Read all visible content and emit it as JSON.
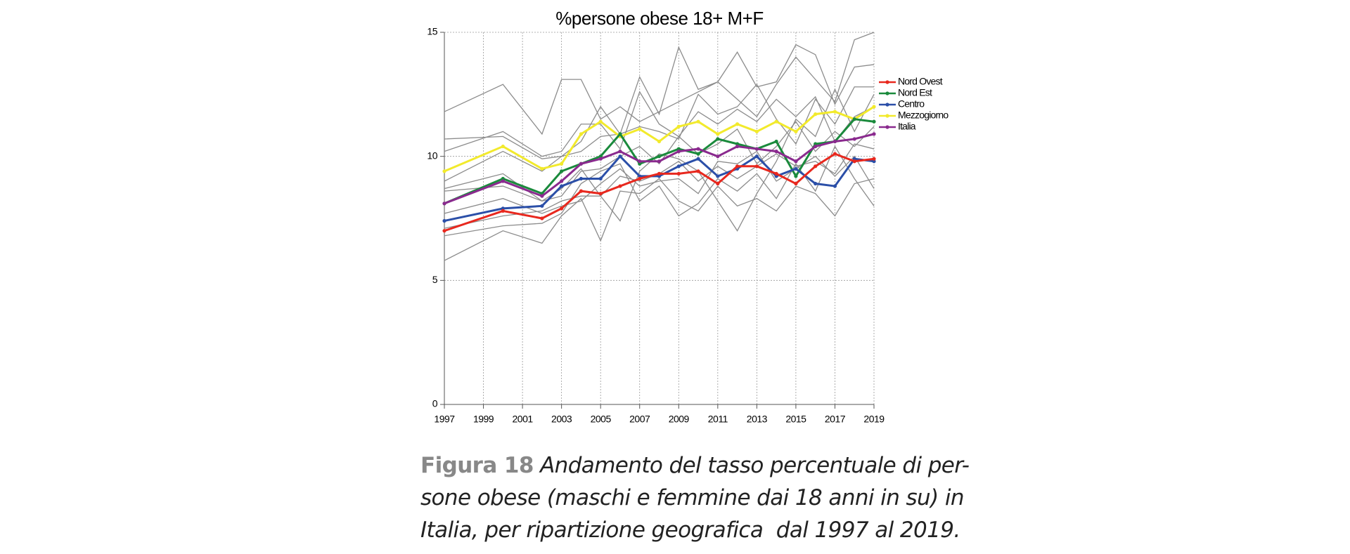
{
  "chart_data": {
    "type": "line",
    "title": "%persone obese 18+ M+F",
    "x": [
      1997,
      2000,
      2002,
      2003,
      2004,
      2005,
      2006,
      2007,
      2008,
      2009,
      2010,
      2011,
      2012,
      2013,
      2014,
      2015,
      2016,
      2017,
      2018,
      2019
    ],
    "xlim": [
      1997,
      2019
    ],
    "xticks": [
      1997,
      1999,
      2001,
      2003,
      2005,
      2007,
      2009,
      2011,
      2013,
      2015,
      2017,
      2019
    ],
    "ylim": [
      0,
      15
    ],
    "yticks": [
      0,
      5,
      10,
      15
    ],
    "grid": true,
    "legend": "right",
    "series": [
      {
        "color": "#8c8c8c",
        "values": [
          11.8,
          12.9,
          10.9,
          13.1,
          13.1,
          11.5,
          12.0,
          11.4,
          11.8,
          12.2,
          12.6,
          13.0,
          12.3,
          11.6,
          12.9,
          14.0,
          13.1,
          12.2,
          14.7,
          15.0
        ]
      },
      {
        "color": "#8c8c8c",
        "values": [
          5.8,
          7.0,
          6.5,
          7.6,
          8.3,
          6.6,
          8.6,
          8.5,
          9.1,
          8.2,
          7.8,
          8.8,
          8.0,
          8.3,
          7.8,
          8.8,
          8.5,
          7.6,
          8.9,
          9.1
        ]
      },
      {
        "color": "#8c8c8c",
        "values": [
          10.7,
          10.8,
          9.9,
          10.0,
          10.6,
          12.0,
          10.9,
          13.2,
          11.7,
          14.4,
          12.7,
          13.0,
          14.2,
          12.8,
          13.0,
          14.5,
          14.1,
          12.1,
          13.6,
          13.7
        ]
      },
      {
        "color": "#8c8c8c",
        "values": [
          8.7,
          9.3,
          8.2,
          8.7,
          9.5,
          8.4,
          7.4,
          9.4,
          10.1,
          9.9,
          9.4,
          8.2,
          7.0,
          8.5,
          9.8,
          11.5,
          10.8,
          12.7,
          11.0,
          12.5
        ]
      },
      {
        "color": "#8c8c8c",
        "values": [
          6.8,
          7.2,
          7.3,
          7.7,
          8.9,
          9.4,
          9.7,
          8.2,
          8.8,
          7.6,
          8.1,
          9.1,
          8.6,
          9.3,
          8.3,
          9.7,
          8.6,
          10.4,
          9.1,
          8.0
        ]
      },
      {
        "color": "#8c8c8c",
        "values": [
          9.0,
          10.2,
          9.4,
          10.0,
          10.2,
          10.8,
          10.9,
          11.2,
          11.0,
          10.7,
          12.5,
          11.7,
          12.0,
          12.9,
          11.5,
          10.5,
          12.3,
          11.3,
          12.8,
          12.8
        ]
      },
      {
        "color": "#8c8c8c",
        "values": [
          8.6,
          8.8,
          8.2,
          8.4,
          9.4,
          9.5,
          10.0,
          10.4,
          9.7,
          10.8,
          10.1,
          10.5,
          11.1,
          9.7,
          10.4,
          11.4,
          10.2,
          11.0,
          10.4,
          11.2
        ]
      },
      {
        "color": "#8c8c8c",
        "values": [
          7.7,
          8.3,
          7.7,
          8.0,
          8.2,
          8.9,
          9.5,
          8.8,
          9.0,
          9.1,
          8.5,
          9.8,
          9.7,
          10.2,
          9.0,
          9.5,
          10.0,
          9.2,
          10.0,
          8.7
        ]
      },
      {
        "color": "#8c8c8c",
        "values": [
          10.2,
          11.0,
          10.0,
          10.2,
          11.3,
          11.3,
          10.3,
          12.6,
          11.3,
          10.8,
          11.8,
          11.3,
          11.9,
          11.4,
          12.3,
          11.6,
          12.4,
          10.6,
          11.6,
          12.0
        ]
      },
      {
        "color": "#8c8c8c",
        "values": [
          7.1,
          7.6,
          7.8,
          8.2,
          8.4,
          8.4,
          9.2,
          9.0,
          9.3,
          9.8,
          9.0,
          9.6,
          9.1,
          9.6,
          10.1,
          9.6,
          9.8,
          9.3,
          10.5,
          10.3
        ]
      },
      {
        "name": "Mezzogiorno",
        "color": "#f2ea2c",
        "values": [
          9.4,
          10.4,
          9.5,
          9.7,
          10.9,
          11.4,
          10.8,
          11.1,
          10.6,
          11.2,
          11.4,
          10.9,
          11.3,
          11.0,
          11.4,
          11.0,
          11.7,
          11.8,
          11.5,
          12.0
        ]
      },
      {
        "name": "Nord Est",
        "color": "#1a8a3c",
        "values": [
          8.1,
          9.1,
          8.5,
          9.4,
          9.7,
          10.0,
          10.9,
          9.7,
          10.0,
          10.3,
          10.1,
          10.7,
          10.5,
          10.3,
          10.6,
          9.2,
          10.5,
          10.6,
          11.5,
          11.4
        ]
      },
      {
        "name": "Italia",
        "color": "#8a2a8e",
        "values": [
          8.1,
          9.0,
          8.4,
          9.0,
          9.7,
          9.9,
          10.2,
          9.8,
          9.8,
          10.2,
          10.3,
          10.0,
          10.4,
          10.3,
          10.2,
          9.8,
          10.4,
          10.6,
          10.7,
          10.9
        ]
      },
      {
        "name": "Centro",
        "color": "#2b4fa8",
        "values": [
          7.4,
          7.9,
          8.0,
          8.8,
          9.1,
          9.1,
          10.0,
          9.2,
          9.2,
          9.6,
          9.9,
          9.2,
          9.5,
          10.0,
          9.2,
          9.5,
          8.9,
          8.8,
          9.9,
          9.8
        ]
      },
      {
        "name": "Nord Ovest",
        "color": "#e8281e",
        "values": [
          7.0,
          7.8,
          7.5,
          7.9,
          8.6,
          8.5,
          8.8,
          9.1,
          9.3,
          9.3,
          9.4,
          8.9,
          9.6,
          9.6,
          9.3,
          8.9,
          9.6,
          10.1,
          9.8,
          9.9
        ]
      }
    ],
    "legend_order": [
      "Nord Ovest",
      "Nord Est",
      "Centro",
      "Mezzogiorno",
      "Italia"
    ]
  },
  "caption": {
    "label": "Figura 18",
    "lines": [
      "Andamento del tasso percentuale di per-",
      "sone obese (maschi e femmine dai 18 anni in su) in",
      "Italia, per ripartizione geografica  dal 1997 al 2019."
    ]
  }
}
